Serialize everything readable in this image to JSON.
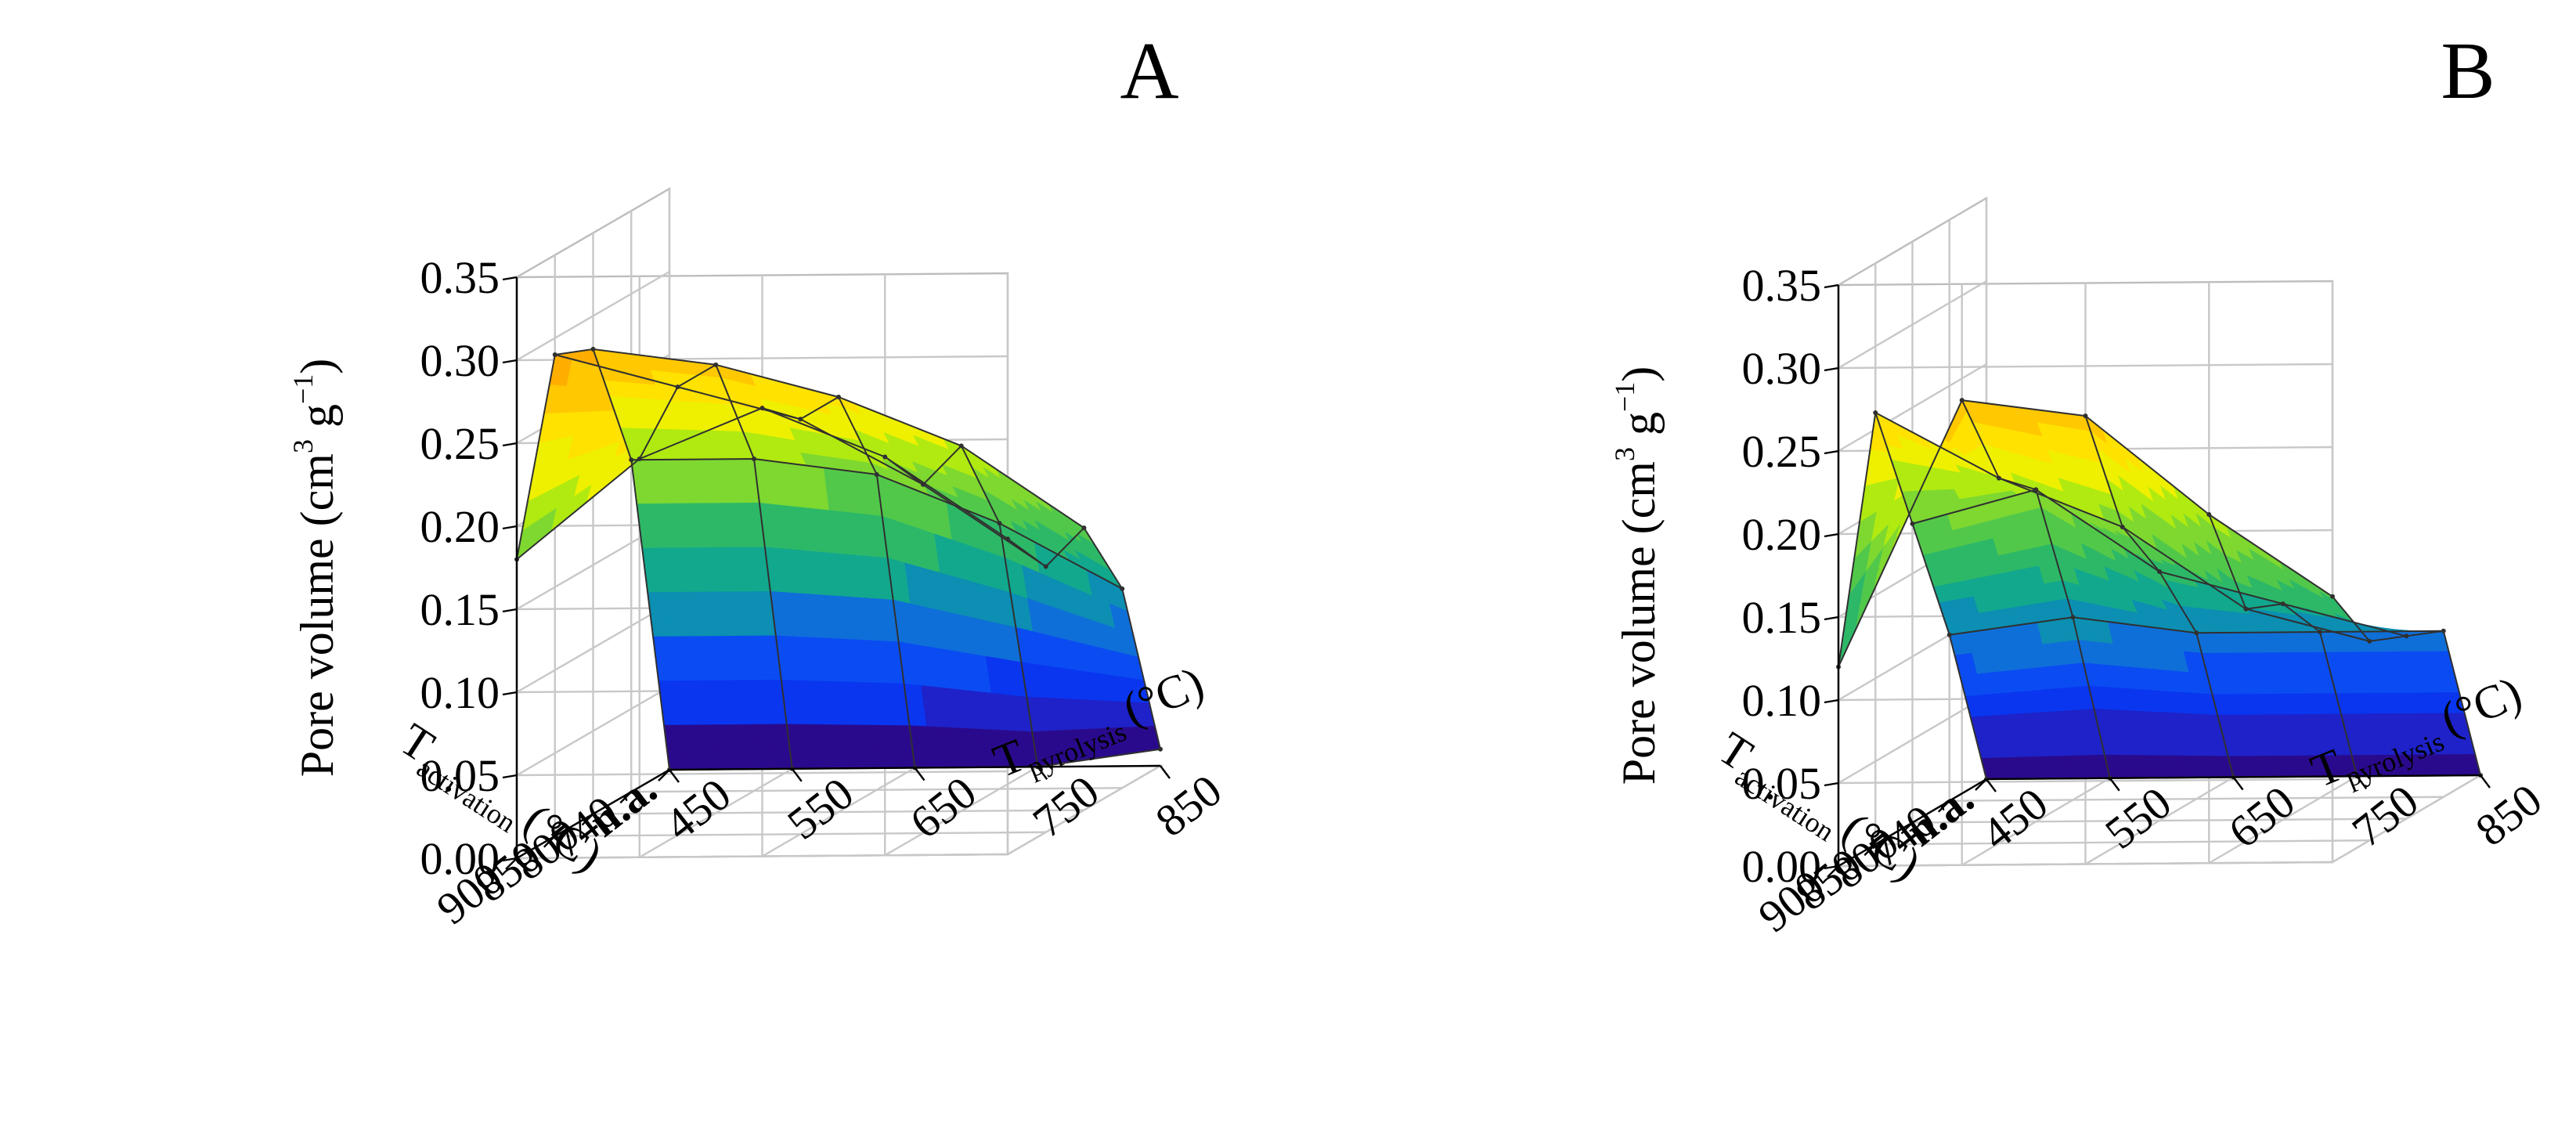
{
  "figure": {
    "title": "",
    "panels": [
      "A",
      "B"
    ]
  },
  "colors": {
    "palette": [
      "#2a0a8c",
      "#1e22c8",
      "#0a36f0",
      "#0a4cf2",
      "#0f6fd8",
      "#0c8fb2",
      "#12a88e",
      "#2db868",
      "#52c84a",
      "#7ed830",
      "#b0ea10",
      "#eef000",
      "#ffe200",
      "#ffc800",
      "#ffae00"
    ],
    "mesh_line": "#303030",
    "grid_line": "#c8c8c8"
  },
  "chart_data": [
    {
      "panel": "A",
      "type": "surface3d",
      "title": "",
      "x_label": "T",
      "x_label_sub": "pyrolysis",
      "x_label_unit": "(°C)",
      "x_categories": [
        "450",
        "550",
        "650",
        "750",
        "850"
      ],
      "y_label": "T",
      "y_label_sub": "activation",
      "y_label_unit": "(°C)",
      "y_categories": [
        "n.a.",
        "740",
        "800",
        "850",
        "900"
      ],
      "z_label": "Pore volume (cm",
      "z_label_sup1": "3",
      "z_label_mid": " g",
      "z_label_sup2": "−1",
      "z_label_end": ")",
      "z_range": [
        0,
        0.35
      ],
      "z_ticks": [
        "0.00",
        "0.05",
        "0.10",
        "0.15",
        "0.20",
        "0.25",
        "0.30",
        "0.35"
      ],
      "z_values": [
        [
          0.0,
          0.0,
          0.0,
          0.0,
          0.01
        ],
        [
          0.2,
          0.2,
          0.19,
          0.16,
          0.12
        ],
        [
          0.28,
          0.27,
          0.25,
          0.22,
          0.17
        ],
        [
          0.29,
          0.27,
          0.25,
          0.21,
          0.16
        ],
        [
          0.18,
          0.24,
          0.27,
          0.24,
          0.19
        ]
      ]
    },
    {
      "panel": "B",
      "type": "surface3d",
      "title": "",
      "x_label": "T",
      "x_label_sub": "pyrolysis",
      "x_label_unit": "(°C)",
      "x_categories": [
        "450",
        "550",
        "650",
        "750",
        "850"
      ],
      "y_label": "T",
      "y_label_sub": "activation",
      "y_label_unit": "(°C)",
      "y_categories": [
        "n.a.",
        "740",
        "800",
        "850",
        "900"
      ],
      "z_label": "Pore volume (cm",
      "z_label_sup1": "3",
      "z_label_mid": " g",
      "z_label_sup2": "−1",
      "z_label_end": ")",
      "z_range": [
        0,
        0.35
      ],
      "z_ticks": [
        "0.00",
        "0.05",
        "0.10",
        "0.15",
        "0.20",
        "0.25",
        "0.30",
        "0.35"
      ],
      "z_values": [
        [
          0.0,
          0.0,
          0.0,
          0.0,
          0.0
        ],
        [
          0.1,
          0.11,
          0.1,
          0.1,
          0.1
        ],
        [
          0.18,
          0.2,
          0.15,
          0.13,
          0.11
        ],
        [
          0.26,
          0.22,
          0.19,
          0.14,
          0.12
        ],
        [
          0.12,
          0.28,
          0.27,
          0.21,
          0.16
        ]
      ]
    }
  ]
}
